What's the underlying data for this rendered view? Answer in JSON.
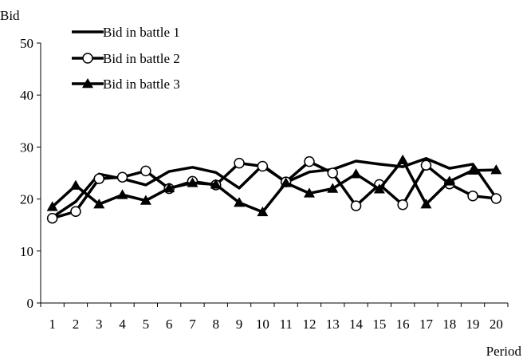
{
  "chart_data": {
    "type": "line",
    "title": "",
    "xlabel": "Period",
    "ylabel": "Bid",
    "ylim": [
      0,
      50
    ],
    "yticks": [
      0,
      10,
      20,
      30,
      40,
      50
    ],
    "categories": [
      "1",
      "2",
      "3",
      "4",
      "5",
      "6",
      "7",
      "8",
      "9",
      "10",
      "11",
      "12",
      "13",
      "14",
      "15",
      "16",
      "17",
      "18",
      "19",
      "20"
    ],
    "grid": false,
    "legend_position": "top-left",
    "series": [
      {
        "name": "Bid in battle 1",
        "marker": "none",
        "color": "#000000",
        "values": [
          16.5,
          19.5,
          24.8,
          23.9,
          22.7,
          25.3,
          26.1,
          25.1,
          22.1,
          26.5,
          23.2,
          25.2,
          25.7,
          27.3,
          26.7,
          26.2,
          27.8,
          25.9,
          26.7,
          20.2
        ]
      },
      {
        "name": "Bid in battle 2",
        "marker": "circle",
        "color": "#000000",
        "values": [
          16.3,
          17.6,
          23.9,
          24.2,
          25.4,
          22.0,
          23.4,
          22.7,
          26.9,
          26.3,
          23.3,
          27.2,
          25.0,
          18.7,
          22.8,
          18.9,
          26.5,
          22.9,
          20.6,
          20.1
        ]
      },
      {
        "name": "Bid in battle 3",
        "marker": "triangle",
        "color": "#000000",
        "values": [
          18.5,
          22.6,
          19.0,
          20.8,
          19.7,
          22.1,
          23.1,
          22.8,
          19.3,
          17.5,
          23.1,
          21.1,
          22.0,
          24.8,
          21.9,
          27.5,
          19.0,
          23.4,
          25.5,
          25.6
        ]
      }
    ]
  }
}
